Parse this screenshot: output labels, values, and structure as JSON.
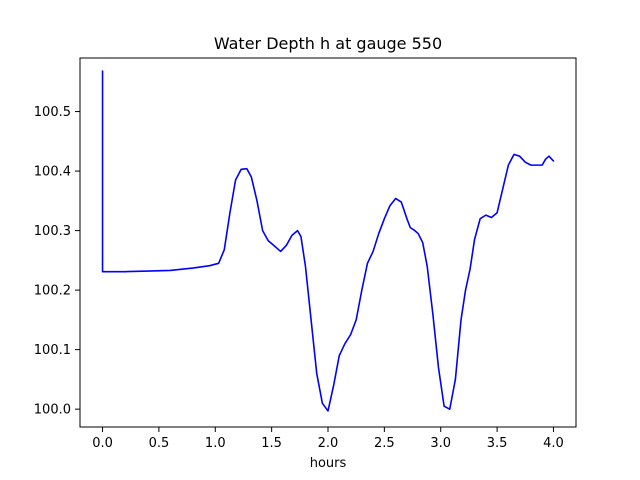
{
  "chart_data": {
    "type": "line",
    "title": "Water Depth h at gauge 550",
    "xlabel": "hours",
    "ylabel": "",
    "xlim": [
      -0.2,
      4.2
    ],
    "ylim": [
      99.97,
      100.59
    ],
    "grid": false,
    "xticks": [
      0.0,
      0.5,
      1.0,
      1.5,
      2.0,
      2.5,
      3.0,
      3.5,
      4.0
    ],
    "xtick_labels": [
      "0.0",
      "0.5",
      "1.0",
      "1.5",
      "2.0",
      "2.5",
      "3.0",
      "3.5",
      "4.0"
    ],
    "yticks": [
      100.0,
      100.1,
      100.2,
      100.3,
      100.4,
      100.5
    ],
    "ytick_labels": [
      "100.0",
      "100.1",
      "100.2",
      "100.3",
      "100.4",
      "100.5"
    ],
    "series": [
      {
        "color": "#0000ff",
        "x": [
          0.0,
          0.0,
          0.02,
          0.2,
          0.4,
          0.6,
          0.8,
          0.95,
          1.03,
          1.08,
          1.13,
          1.18,
          1.23,
          1.28,
          1.32,
          1.37,
          1.42,
          1.47,
          1.52,
          1.58,
          1.63,
          1.68,
          1.73,
          1.76,
          1.8,
          1.85,
          1.9,
          1.95,
          2.0,
          2.05,
          2.1,
          2.15,
          2.2,
          2.25,
          2.3,
          2.35,
          2.4,
          2.45,
          2.5,
          2.55,
          2.6,
          2.65,
          2.7,
          2.73,
          2.77,
          2.8,
          2.84,
          2.88,
          2.93,
          2.98,
          3.03,
          3.08,
          3.13,
          3.18,
          3.22,
          3.26,
          3.3,
          3.35,
          3.4,
          3.45,
          3.5,
          3.55,
          3.6,
          3.65,
          3.7,
          3.75,
          3.8,
          3.85,
          3.9,
          3.93,
          3.96,
          4.0
        ],
        "y": [
          100.568,
          100.231,
          100.231,
          100.231,
          100.232,
          100.233,
          100.237,
          100.241,
          100.245,
          100.268,
          100.33,
          100.385,
          100.403,
          100.404,
          100.39,
          100.35,
          100.3,
          100.283,
          100.275,
          100.265,
          100.275,
          100.292,
          100.3,
          100.29,
          100.24,
          100.15,
          100.06,
          100.01,
          99.997,
          100.04,
          100.09,
          100.11,
          100.125,
          100.15,
          100.2,
          100.245,
          100.265,
          100.295,
          100.32,
          100.342,
          100.354,
          100.348,
          100.32,
          100.305,
          100.3,
          100.295,
          100.28,
          100.24,
          100.16,
          100.07,
          100.005,
          100.0,
          100.05,
          100.15,
          100.2,
          100.235,
          100.285,
          100.32,
          100.326,
          100.322,
          100.33,
          100.37,
          100.41,
          100.428,
          100.425,
          100.415,
          100.41,
          100.41,
          100.41,
          100.42,
          100.425,
          100.417
        ]
      }
    ]
  }
}
